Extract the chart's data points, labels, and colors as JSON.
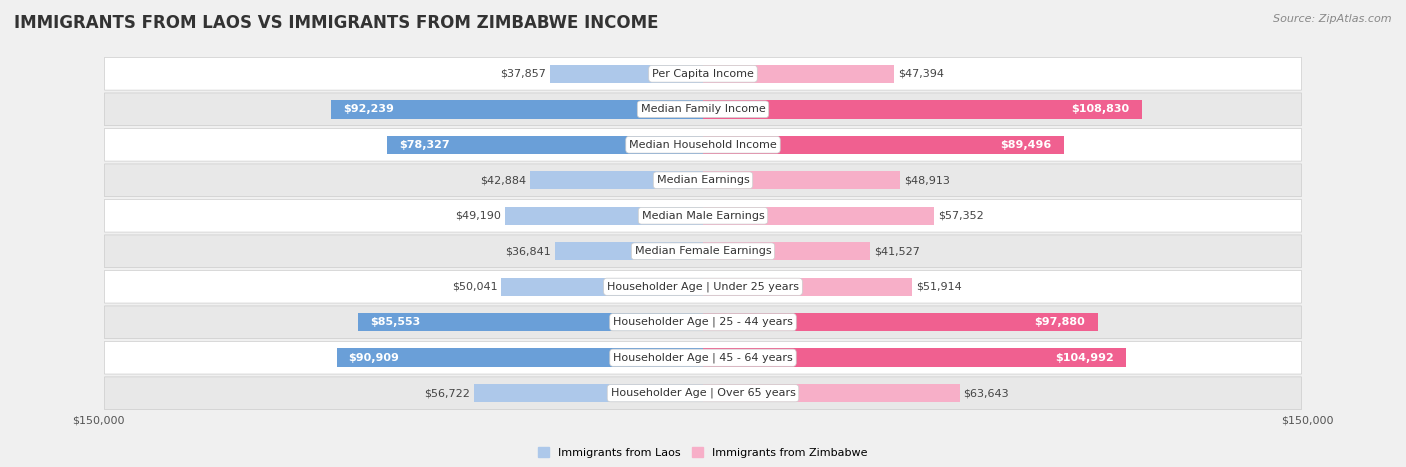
{
  "title": "IMMIGRANTS FROM LAOS VS IMMIGRANTS FROM ZIMBABWE INCOME",
  "source": "Source: ZipAtlas.com",
  "categories": [
    "Per Capita Income",
    "Median Family Income",
    "Median Household Income",
    "Median Earnings",
    "Median Male Earnings",
    "Median Female Earnings",
    "Householder Age | Under 25 years",
    "Householder Age | 25 - 44 years",
    "Householder Age | 45 - 64 years",
    "Householder Age | Over 65 years"
  ],
  "laos_values": [
    37857,
    92239,
    78327,
    42884,
    49190,
    36841,
    50041,
    85553,
    90909,
    56722
  ],
  "zimbabwe_values": [
    47394,
    108830,
    89496,
    48913,
    57352,
    41527,
    51914,
    97880,
    104992,
    63643
  ],
  "laos_color_light": "#adc8ea",
  "laos_color_dark": "#6a9fd8",
  "zimbabwe_color_light": "#f7afc8",
  "zimbabwe_color_dark": "#f06090",
  "laos_label": "Immigrants from Laos",
  "zimbabwe_label": "Immigrants from Zimbabwe",
  "max_value": 150000,
  "bg_color": "#f0f0f0",
  "row_bg_white": "#ffffff",
  "row_bg_gray": "#e8e8e8",
  "inside_label_threshold": 75000,
  "title_fontsize": 12,
  "source_fontsize": 8,
  "bar_label_fontsize": 8,
  "cat_label_fontsize": 8,
  "axis_label_fontsize": 8,
  "legend_fontsize": 8
}
